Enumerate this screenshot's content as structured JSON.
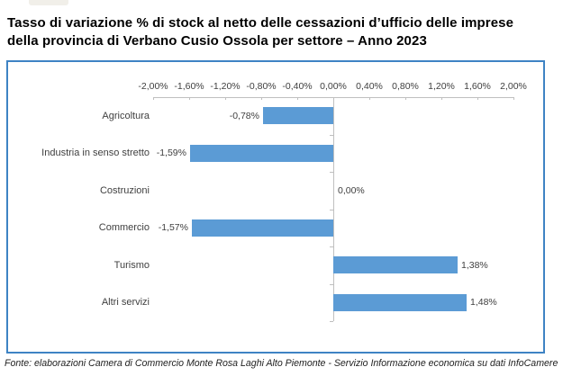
{
  "page": {
    "title_line1": "Tasso di variazione % di stock al netto delle cessazioni d’ufficio delle imprese",
    "title_line2": "della provincia di Verbano Cusio Ossola per settore – Anno 2023",
    "source": "Fonte: elaborazioni Camera di Commercio Monte Rosa Laghi Alto Piemonte - Servizio Informazione economica su dati InfoCamere"
  },
  "colors": {
    "bar": "#5b9bd5",
    "box_border": "#3e83c4",
    "axis": "#bfbfbf",
    "text": "#404040"
  },
  "chart_data": {
    "type": "bar",
    "orientation": "horizontal",
    "title": "Tasso di variazione % di stock al netto delle cessazioni d’ufficio delle imprese della provincia di Verbano Cusio Ossola per settore – Anno 2023",
    "categories": [
      "Agricoltura",
      "Industria in senso stretto",
      "Costruzioni",
      "Commercio",
      "Turismo",
      "Altri servizi"
    ],
    "values": [
      -0.78,
      -1.59,
      0.0,
      -1.57,
      1.38,
      1.48
    ],
    "value_labels": [
      "-0,78%",
      "-1,59%",
      "0,00%",
      "-1,57%",
      "1,38%",
      "1,48%"
    ],
    "x_tick_values": [
      -2.0,
      -1.6,
      -1.2,
      -0.8,
      -0.4,
      0.0,
      0.4,
      0.8,
      1.2,
      1.6,
      2.0
    ],
    "x_tick_labels": [
      "-2,00%",
      "-1,60%",
      "-1,20%",
      "-0,80%",
      "-0,40%",
      "0,00%",
      "0,40%",
      "0,80%",
      "1,20%",
      "1,60%",
      "2,00%"
    ],
    "xlim": [
      -2.0,
      2.0
    ],
    "xlabel": "",
    "ylabel": "",
    "grid": false,
    "legend": false,
    "data_labels": true
  }
}
